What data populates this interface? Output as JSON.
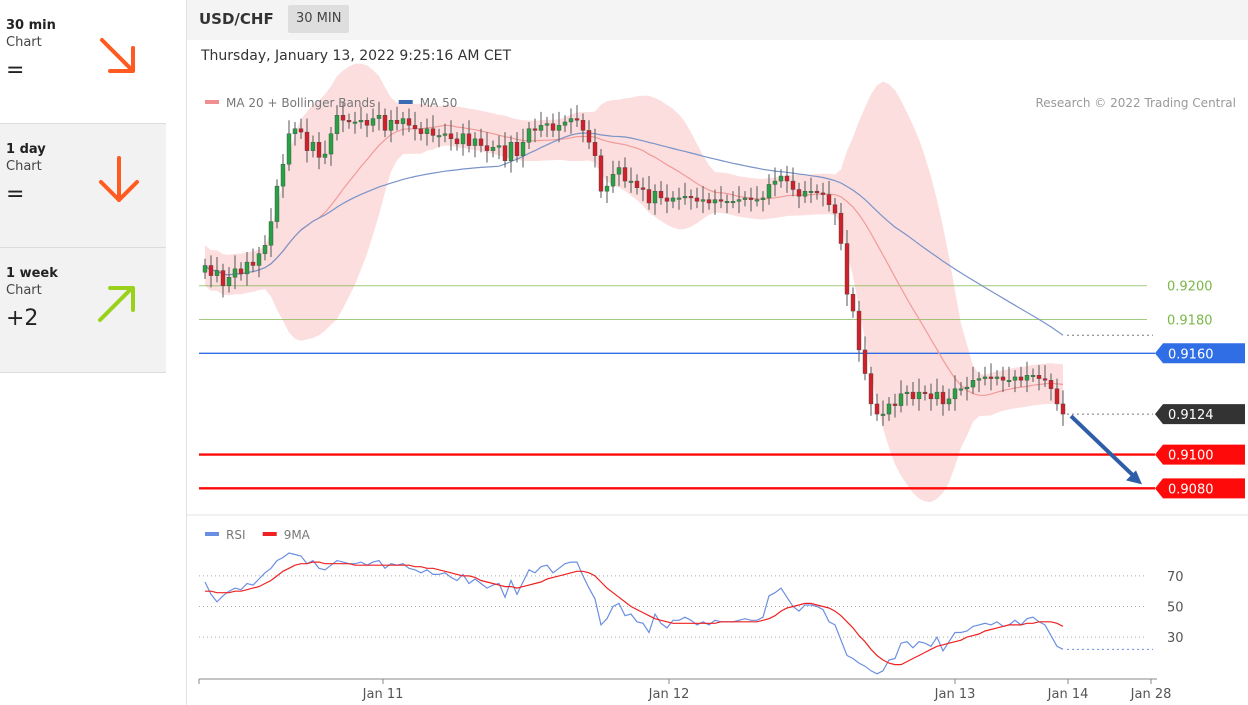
{
  "left_panel": {
    "items": [
      {
        "name": "30 min",
        "sub": "Chart",
        "value": "=",
        "direction": "down-right",
        "color": "#ff5a1f"
      },
      {
        "name": "1 day",
        "sub": "Chart",
        "value": "=",
        "direction": "down",
        "color": "#ff5a1f"
      },
      {
        "name": "1 week",
        "sub": "Chart",
        "value": "+2",
        "direction": "up-right",
        "color": "#9ad11b"
      }
    ]
  },
  "header": {
    "pair": "USD/CHF",
    "period": "30 MIN",
    "datetime": "Thursday, January 13, 2022 9:25:16 AM CET",
    "credit": "Research © 2022 Trading Central"
  },
  "chart_data": [
    {
      "type": "candlestick",
      "title": "",
      "legend": [
        {
          "name": "MA 20 + Bollinger Bands",
          "color": "#f08f8f"
        },
        {
          "name": "MA 50",
          "color": "#3b6ab5"
        }
      ],
      "legend_position": "top-left",
      "ylim": [
        0.9066,
        0.931
      ],
      "x_ticks": [
        "Jan 11",
        "Jan 12",
        "Jan 13",
        "Jan 14",
        "Jan 28"
      ],
      "levels": [
        {
          "label": "0.9200",
          "value": 0.92,
          "style": "green-line",
          "color": "#7ab648"
        },
        {
          "label": "0.9180",
          "value": 0.918,
          "style": "green-line",
          "color": "#7ab648"
        },
        {
          "label": "0.9160",
          "value": 0.916,
          "style": "blue-tag",
          "color": "#2f6ee5"
        },
        {
          "label": "0.9124",
          "value": 0.9124,
          "style": "dark-tag",
          "color": "#333333"
        },
        {
          "label": "0.9100",
          "value": 0.91,
          "style": "red-tag",
          "color": "#ff0a0a"
        },
        {
          "label": "0.9080",
          "value": 0.908,
          "style": "red-tag",
          "color": "#ff0a0a"
        }
      ],
      "closes": [
        0.9212,
        0.9206,
        0.9209,
        0.92,
        0.9205,
        0.921,
        0.9207,
        0.9214,
        0.9212,
        0.9219,
        0.9224,
        0.9238,
        0.9259,
        0.9272,
        0.929,
        0.9293,
        0.9291,
        0.928,
        0.9285,
        0.9276,
        0.9278,
        0.929,
        0.9301,
        0.9298,
        0.9297,
        0.9297,
        0.9298,
        0.9295,
        0.9299,
        0.9301,
        0.9292,
        0.9298,
        0.9296,
        0.9299,
        0.9295,
        0.9293,
        0.929,
        0.9293,
        0.9289,
        0.9289,
        0.929,
        0.9287,
        0.9284,
        0.929,
        0.9283,
        0.9287,
        0.9283,
        0.928,
        0.9282,
        0.9283,
        0.9274,
        0.9285,
        0.9277,
        0.9285,
        0.9293,
        0.9292,
        0.9295,
        0.9296,
        0.9292,
        0.9295,
        0.9297,
        0.9299,
        0.9298,
        0.9292,
        0.9285,
        0.9277,
        0.9256,
        0.9259,
        0.9266,
        0.927,
        0.9262,
        0.9262,
        0.9258,
        0.9257,
        0.9249,
        0.9256,
        0.9252,
        0.925,
        0.9252,
        0.9252,
        0.9253,
        0.9252,
        0.925,
        0.9251,
        0.9249,
        0.9251,
        0.925,
        0.925,
        0.925,
        0.9251,
        0.9252,
        0.9251,
        0.9251,
        0.9252,
        0.926,
        0.9262,
        0.9265,
        0.9262,
        0.9257,
        0.9253,
        0.9256,
        0.9256,
        0.9255,
        0.9254,
        0.9248,
        0.9243,
        0.9225,
        0.9195,
        0.9185,
        0.9162,
        0.9148,
        0.913,
        0.9124,
        0.9124,
        0.913,
        0.9129,
        0.9136,
        0.9137,
        0.9133,
        0.9137,
        0.9136,
        0.9133,
        0.9137,
        0.913,
        0.9133,
        0.9139,
        0.9139,
        0.914,
        0.9144,
        0.9145,
        0.9146,
        0.9145,
        0.9146,
        0.9144,
        0.9144,
        0.9146,
        0.9144,
        0.9147,
        0.9147,
        0.9145,
        0.9144,
        0.9139,
        0.913,
        0.9124
      ],
      "series": [
        {
          "name": "MA 20 + Bollinger Bands",
          "style": "band"
        },
        {
          "name": "MA 50",
          "style": "line"
        }
      ]
    },
    {
      "type": "line",
      "title": "",
      "legend": [
        {
          "name": "RSI",
          "color": "#6b8fe0"
        },
        {
          "name": "9MA",
          "color": "#ee2222"
        }
      ],
      "legend_position": "top-left",
      "ylim": [
        0,
        100
      ],
      "y_ticks": [
        30,
        50,
        70
      ],
      "series": [
        {
          "name": "RSI",
          "values": [
            66,
            58,
            53,
            57,
            60,
            62,
            61,
            65,
            64,
            68,
            72,
            75,
            80,
            82,
            85,
            84,
            83,
            78,
            80,
            75,
            74,
            77,
            80,
            79,
            78,
            78,
            79,
            77,
            79,
            80,
            75,
            78,
            77,
            78,
            75,
            74,
            72,
            74,
            71,
            71,
            72,
            69,
            67,
            71,
            65,
            68,
            65,
            62,
            64,
            65,
            56,
            67,
            58,
            66,
            74,
            72,
            76,
            77,
            72,
            75,
            78,
            79,
            79,
            70,
            62,
            55,
            38,
            42,
            50,
            52,
            44,
            45,
            40,
            39,
            33,
            45,
            39,
            36,
            41,
            41,
            43,
            41,
            38,
            40,
            38,
            41,
            40,
            40,
            40,
            41,
            42,
            41,
            41,
            43,
            57,
            59,
            62,
            56,
            50,
            47,
            51,
            51,
            50,
            48,
            40,
            38,
            28,
            18,
            16,
            13,
            11,
            8,
            6,
            8,
            15,
            16,
            26,
            27,
            23,
            27,
            26,
            24,
            30,
            21,
            27,
            33,
            33,
            34,
            37,
            38,
            39,
            38,
            40,
            37,
            38,
            41,
            38,
            42,
            43,
            40,
            38,
            31,
            24,
            22
          ]
        },
        {
          "name": "9MA",
          "values": [
            60,
            60,
            59,
            59,
            59,
            60,
            60,
            61,
            62,
            63,
            65,
            67,
            70,
            73,
            75,
            77,
            78,
            78,
            79,
            79,
            78,
            78,
            78,
            78,
            78,
            77,
            77,
            77,
            77,
            77,
            77,
            77,
            77,
            77,
            77,
            76,
            76,
            75,
            75,
            74,
            73,
            72,
            71,
            70,
            70,
            69,
            67,
            66,
            65,
            64,
            63,
            63,
            62,
            63,
            64,
            65,
            66,
            68,
            69,
            70,
            71,
            72,
            73,
            73,
            72,
            70,
            66,
            62,
            59,
            56,
            53,
            50,
            48,
            46,
            44,
            42,
            41,
            40,
            39,
            39,
            39,
            39,
            39,
            39,
            39,
            39,
            40,
            40,
            40,
            40,
            40,
            40,
            40,
            41,
            42,
            44,
            47,
            49,
            50,
            51,
            52,
            52,
            51,
            50,
            49,
            47,
            44,
            40,
            36,
            31,
            27,
            22,
            18,
            15,
            13,
            12,
            12,
            14,
            16,
            18,
            20,
            22,
            24,
            25,
            26,
            27,
            28,
            30,
            31,
            32,
            34,
            35,
            36,
            37,
            38,
            38,
            38,
            39,
            39,
            40,
            40,
            40,
            39,
            37
          ]
        }
      ]
    }
  ]
}
